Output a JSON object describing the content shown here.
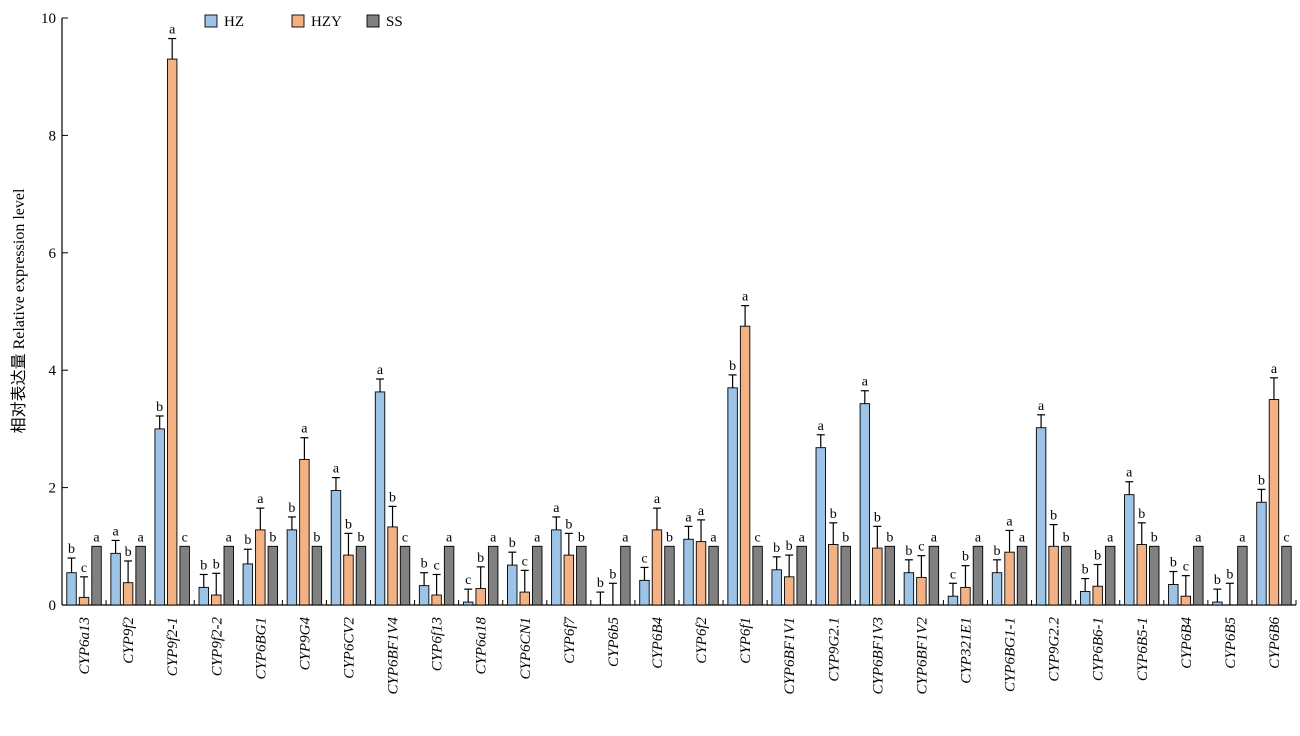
{
  "chart_data": {
    "type": "bar",
    "ylabel": "相对表达量 Relative expression level",
    "xlabel": "",
    "ylim": [
      0,
      10
    ],
    "yticks": [
      0,
      2,
      4,
      6,
      8,
      10
    ],
    "grid": false,
    "legend_position": "top-left",
    "categories": [
      "CYP6a13",
      "CYP9f2",
      "CYP9f2-1",
      "CYP9f2-2",
      "CYP6BG1",
      "CYP9G4",
      "CYP6CV2",
      "CYP6BF1V4",
      "CYP6f13",
      "CYP6a18",
      "CYP6CN1",
      "CYP6f7",
      "CYP6b5",
      "CYP6B4",
      "CYP6f2",
      "CYP6f1",
      "CYP6BF1V1",
      "CYP9G2.1",
      "CYP6BF1V3",
      "CYP6BF1V2",
      "CYP321E1",
      "CYP6BG1-1",
      "CYP9G2.2",
      "CYP6B6-1",
      "CYP6B5-1",
      "CYP6B4",
      "CYP6B5",
      "CYP6B6"
    ],
    "series": [
      {
        "name": "HZ",
        "color": "#9dc3e6",
        "values": [
          0.55,
          0.88,
          3.0,
          0.3,
          0.7,
          1.28,
          1.95,
          3.63,
          0.33,
          0.05,
          0.68,
          1.28,
          0.0,
          0.42,
          1.12,
          3.7,
          0.6,
          2.68,
          3.43,
          0.55,
          0.15,
          0.55,
          3.02,
          0.23,
          1.88,
          0.35,
          0.05,
          1.75
        ],
        "errors": [
          0.25,
          0.22,
          0.22,
          0.22,
          0.25,
          0.22,
          0.22,
          0.22,
          0.22,
          0.22,
          0.22,
          0.22,
          0.22,
          0.22,
          0.22,
          0.22,
          0.22,
          0.22,
          0.22,
          0.22,
          0.22,
          0.22,
          0.22,
          0.22,
          0.22,
          0.22,
          0.22,
          0.22
        ],
        "labels": [
          "b",
          "a",
          "b",
          "b",
          "b",
          "b",
          "a",
          "a",
          "b",
          "c",
          "b",
          "a",
          "b",
          "c",
          "a",
          "b",
          "b",
          "a",
          "a",
          "b",
          "c",
          "b",
          "a",
          "b",
          "a",
          "b",
          "b",
          "b"
        ]
      },
      {
        "name": "HZY",
        "color": "#f4b183",
        "values": [
          0.13,
          0.38,
          9.3,
          0.17,
          1.28,
          2.48,
          0.85,
          1.33,
          0.17,
          0.28,
          0.22,
          0.85,
          0.0,
          1.28,
          1.08,
          4.75,
          0.48,
          1.03,
          0.97,
          0.47,
          0.3,
          0.9,
          1.0,
          0.32,
          1.03,
          0.15,
          0.0,
          3.5
        ],
        "errors": [
          0.35,
          0.37,
          0.35,
          0.37,
          0.37,
          0.37,
          0.37,
          0.35,
          0.35,
          0.37,
          0.37,
          0.37,
          0.37,
          0.37,
          0.37,
          0.35,
          0.37,
          0.37,
          0.37,
          0.37,
          0.37,
          0.37,
          0.37,
          0.37,
          0.37,
          0.35,
          0.37,
          0.37
        ],
        "labels": [
          "c",
          "b",
          "a",
          "b",
          "a",
          "a",
          "b",
          "b",
          "c",
          "b",
          "c",
          "b",
          "b",
          "a",
          "a",
          "a",
          "b",
          "b",
          "b",
          "c",
          "b",
          "a",
          "b",
          "b",
          "b",
          "c",
          "b",
          "a"
        ]
      },
      {
        "name": "SS",
        "color": "#808080",
        "values": [
          1,
          1,
          1,
          1,
          1,
          1,
          1,
          1,
          1,
          1,
          1,
          1,
          1,
          1,
          1,
          1,
          1,
          1,
          1,
          1,
          1,
          1,
          1,
          1,
          1,
          1,
          1,
          1
        ],
        "errors": [
          0,
          0,
          0,
          0,
          0,
          0,
          0,
          0,
          0,
          0,
          0,
          0,
          0,
          0,
          0,
          0,
          0,
          0,
          0,
          0,
          0,
          0,
          0,
          0,
          0,
          0,
          0,
          0
        ],
        "labels": [
          "a",
          "a",
          "c",
          "a",
          "b",
          "b",
          "b",
          "c",
          "a",
          "a",
          "a",
          "b",
          "a",
          "b",
          "a",
          "c",
          "a",
          "b",
          "b",
          "a",
          "a",
          "a",
          "b",
          "a",
          "b",
          "a",
          "a",
          "c"
        ]
      }
    ]
  }
}
